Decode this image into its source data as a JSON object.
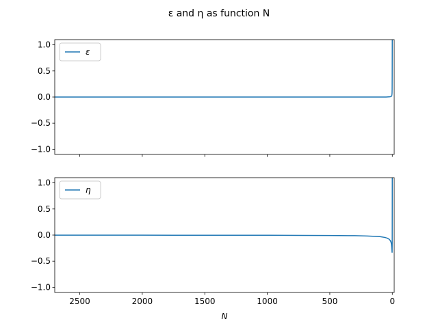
{
  "figure": {
    "title": "ε and η as function N",
    "xlabel": "N"
  },
  "colors": {
    "series": "#1f77b4"
  },
  "chart_data": [
    {
      "type": "line",
      "legend_placement": "upper-left",
      "grid": false,
      "x_inverted": true,
      "xlim": [
        2700,
        -15
      ],
      "ylim": [
        -1.1,
        1.1
      ],
      "xticks": [
        2500,
        2000,
        1500,
        1000,
        500,
        0
      ],
      "xtick_labels_shown": false,
      "yticks": [
        -1.0,
        -0.5,
        0.0,
        0.5,
        1.0
      ],
      "ytick_labels": [
        "−1.0",
        "−0.5",
        "0.0",
        "0.5",
        "1.0"
      ],
      "series": [
        {
          "name": "ε",
          "x": [
            2700,
            2500,
            2000,
            1500,
            1000,
            500,
            100,
            50,
            20,
            10,
            6,
            4,
            3,
            2,
            1.5,
            1,
            0.5,
            0
          ],
          "y": [
            0,
            0,
            0,
            0,
            0,
            0,
            0,
            0,
            0.005,
            0.01,
            0.02,
            0.03,
            0.05,
            0.08,
            0.15,
            0.4,
            0.9,
            1.5
          ]
        }
      ]
    },
    {
      "type": "line",
      "legend_placement": "upper-left",
      "grid": false,
      "x_inverted": true,
      "xlim": [
        2700,
        -15
      ],
      "ylim": [
        -1.1,
        1.1
      ],
      "xticks": [
        2500,
        2000,
        1500,
        1000,
        500,
        0
      ],
      "xtick_labels": [
        "2500",
        "2000",
        "1500",
        "1000",
        "500",
        "0"
      ],
      "yticks": [
        -1.0,
        -0.5,
        0.0,
        0.5,
        1.0
      ],
      "ytick_labels": [
        "−1.0",
        "−0.5",
        "0.0",
        "0.5",
        "1.0"
      ],
      "series": [
        {
          "name": "η",
          "x": [
            2700,
            2500,
            2000,
            1500,
            1000,
            700,
            500,
            300,
            200,
            100,
            60,
            40,
            25,
            15,
            10,
            7,
            5,
            3,
            2,
            1.5,
            1,
            0.7,
            0.4,
            0.2,
            0
          ],
          "y": [
            -0.001,
            -0.001,
            -0.002,
            -0.003,
            -0.004,
            -0.006,
            -0.008,
            -0.012,
            -0.018,
            -0.03,
            -0.045,
            -0.06,
            -0.08,
            -0.11,
            -0.14,
            -0.18,
            -0.23,
            -0.3,
            -0.33,
            -0.33,
            -0.2,
            0.2,
            0.8,
            1.3,
            1.6
          ]
        }
      ]
    }
  ]
}
